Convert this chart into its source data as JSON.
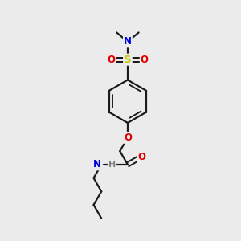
{
  "bg_color": "#ebebeb",
  "bond_color": "#1a1a1a",
  "atom_colors": {
    "N": "#0000e0",
    "O": "#e00000",
    "S": "#c8c800",
    "H": "#808080"
  },
  "bond_width": 1.6,
  "font_size": 8.5
}
